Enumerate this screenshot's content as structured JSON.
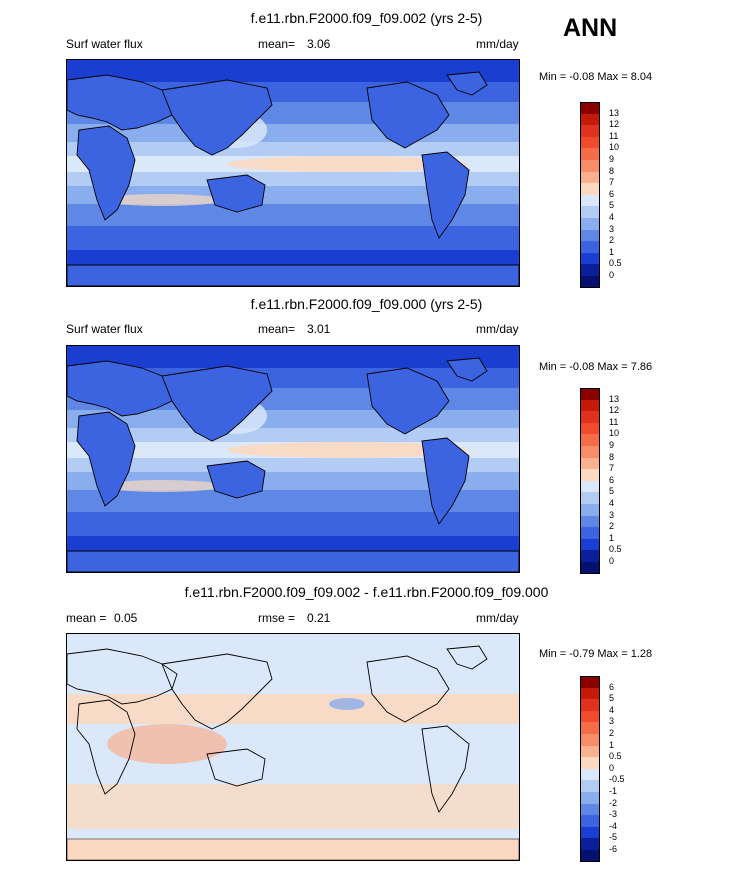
{
  "season": "ANN",
  "panels": [
    {
      "title": "f.e11.rbn.F2000.f09_f09.002 (yrs 2-5)",
      "left_label": "Surf water flux",
      "stat1_label": "mean=",
      "stat1_value": "3.06",
      "stat2_label": "",
      "stat2_value": "",
      "units": "mm/day",
      "minmax": "Min =  -0.08 Max =   8.04",
      "colorbar_labels": [
        "13",
        "12",
        "11",
        "10",
        "9",
        "8",
        "7",
        "6",
        "5",
        "4",
        "3",
        "2",
        "1",
        "0.5",
        "0"
      ],
      "colorbar_colors": [
        "#8b0000",
        "#c41a0a",
        "#e0321e",
        "#f04b2d",
        "#f56c48",
        "#f78c68",
        "#f8b08e",
        "#fad9c0",
        "#dbe8f9",
        "#b3ccf3",
        "#8aaeed",
        "#5f88e6",
        "#3c64e0",
        "#1a3fd0",
        "#0b1f9a",
        "#061070"
      ],
      "map_palette": "full"
    },
    {
      "title": "f.e11.rbn.F2000.f09_f09.000 (yrs 2-5)",
      "left_label": "Surf water flux",
      "stat1_label": "mean=",
      "stat1_value": "3.01",
      "stat2_label": "",
      "stat2_value": "",
      "units": "mm/day",
      "minmax": "Min =  -0.08 Max =   7.86",
      "colorbar_labels": [
        "13",
        "12",
        "11",
        "10",
        "9",
        "8",
        "7",
        "6",
        "5",
        "4",
        "3",
        "2",
        "1",
        "0.5",
        "0"
      ],
      "colorbar_colors": [
        "#8b0000",
        "#c41a0a",
        "#e0321e",
        "#f04b2d",
        "#f56c48",
        "#f78c68",
        "#f8b08e",
        "#fad9c0",
        "#dbe8f9",
        "#b3ccf3",
        "#8aaeed",
        "#5f88e6",
        "#3c64e0",
        "#1a3fd0",
        "#0b1f9a",
        "#061070"
      ],
      "map_palette": "full"
    },
    {
      "title": "f.e11.rbn.F2000.f09_f09.002 - f.e11.rbn.F2000.f09_f09.000",
      "left_label": "",
      "stat1_label": "mean =",
      "stat1_value": "0.05",
      "stat2_label": "rmse =",
      "stat2_value": "0.21",
      "units": "mm/day",
      "minmax": "Min =  -0.79 Max =   1.28",
      "colorbar_labels": [
        "6",
        "5",
        "4",
        "3",
        "2",
        "1",
        "0.5",
        "0",
        "-0.5",
        "-1",
        "-2",
        "-3",
        "-4",
        "-5",
        "-6"
      ],
      "colorbar_colors": [
        "#8b0000",
        "#c41a0a",
        "#e0321e",
        "#f04b2d",
        "#f56c48",
        "#f78c68",
        "#f8b08e",
        "#fad9c0",
        "#dbe8f9",
        "#b3ccf3",
        "#8aaeed",
        "#5f88e6",
        "#3c64e0",
        "#1a3fd0",
        "#0b1f9a",
        "#061070"
      ],
      "map_palette": "diff"
    }
  ],
  "chart_data": [
    {
      "type": "heatmap",
      "title": "f.e11.rbn.F2000.f09_f09.002 (yrs 2-5)",
      "variable": "Surf water flux",
      "units": "mm/day",
      "mean": 3.06,
      "min": -0.08,
      "max": 8.04,
      "levels": [
        0,
        0.5,
        1,
        2,
        3,
        4,
        5,
        6,
        7,
        8,
        9,
        10,
        11,
        12,
        13
      ]
    },
    {
      "type": "heatmap",
      "title": "f.e11.rbn.F2000.f09_f09.000 (yrs 2-5)",
      "variable": "Surf water flux",
      "units": "mm/day",
      "mean": 3.01,
      "min": -0.08,
      "max": 7.86,
      "levels": [
        0,
        0.5,
        1,
        2,
        3,
        4,
        5,
        6,
        7,
        8,
        9,
        10,
        11,
        12,
        13
      ]
    },
    {
      "type": "heatmap",
      "title": "f.e11.rbn.F2000.f09_f09.002 - f.e11.rbn.F2000.f09_f09.000",
      "units": "mm/day",
      "mean": 0.05,
      "rmse": 0.21,
      "min": -0.79,
      "max": 1.28,
      "levels": [
        -6,
        -5,
        -4,
        -3,
        -2,
        -1,
        -0.5,
        0,
        0.5,
        1,
        2,
        3,
        4,
        5,
        6
      ]
    }
  ]
}
